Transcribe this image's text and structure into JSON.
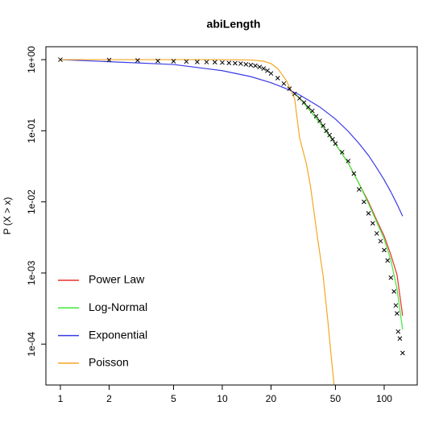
{
  "chart_data": {
    "type": "line",
    "title": "abiLength",
    "y_label": "P (X > x)",
    "log_x": true,
    "log_y": true,
    "legend": "bottomleft",
    "xlim": [
      0.814,
      160
    ],
    "ylim": [
      2.66e-05,
      1.52
    ],
    "xticks": [
      1,
      2,
      5,
      10,
      20,
      50,
      100
    ],
    "yticks": [
      {
        "value": 1,
        "label": "1e+00"
      },
      {
        "value": 0.1,
        "label": "1e-01"
      },
      {
        "value": 0.01,
        "label": "1e-02"
      },
      {
        "value": 0.001,
        "label": "1e-03"
      },
      {
        "value": 0.0001,
        "label": "1e-04"
      }
    ],
    "points": {
      "color": "#000000",
      "x": [
        1,
        2,
        3,
        4,
        5,
        6,
        7,
        8,
        9,
        10,
        11,
        12,
        13,
        14,
        15,
        16,
        17,
        18,
        19,
        20,
        22,
        24,
        26,
        28,
        30,
        32,
        34,
        36,
        38,
        40,
        42,
        44,
        46,
        48,
        50,
        55,
        60,
        65,
        70,
        75,
        80,
        85,
        90,
        95,
        100,
        105,
        110,
        115,
        118,
        120,
        122,
        125,
        130
      ],
      "values": [
        1,
        0.99,
        0.975,
        0.96,
        0.95,
        0.94,
        0.93,
        0.925,
        0.92,
        0.91,
        0.9,
        0.89,
        0.88,
        0.86,
        0.84,
        0.82,
        0.79,
        0.75,
        0.7,
        0.64,
        0.55,
        0.46,
        0.39,
        0.33,
        0.286,
        0.25,
        0.215,
        0.19,
        0.16,
        0.138,
        0.118,
        0.1,
        0.087,
        0.076,
        0.066,
        0.05,
        0.0375,
        0.025,
        0.015,
        0.01,
        0.0069,
        0.005,
        0.0036,
        0.0028,
        0.0021,
        0.0015,
        0.00086,
        0.00055,
        0.00035,
        0.00027,
        0.00015,
        0.00012,
        7.5e-05
      ]
    },
    "series": [
      {
        "name": "Power Law",
        "color": "#e8302a",
        "x": [
          28,
          30,
          40,
          50,
          60,
          70,
          80,
          90,
          100,
          110,
          120,
          130
        ],
        "values": [
          0.33,
          0.29,
          0.13,
          0.065,
          0.035,
          0.018,
          0.01,
          0.0055,
          0.0033,
          0.0018,
          0.00095,
          0.00025
        ]
      },
      {
        "name": "Log-Normal",
        "color": "#3ee83a",
        "x": [
          28,
          30,
          40,
          50,
          60,
          70,
          80,
          90,
          100,
          110,
          120,
          130
        ],
        "values": [
          0.33,
          0.29,
          0.13,
          0.065,
          0.035,
          0.018,
          0.0095,
          0.0052,
          0.003,
          0.0015,
          0.0006,
          0.00016
        ]
      },
      {
        "name": "Exponential",
        "color": "#3a3ae8",
        "x": [
          1,
          5,
          10,
          15,
          20,
          25,
          30,
          40,
          50,
          60,
          70,
          80,
          90,
          100,
          110,
          120,
          130
        ],
        "values": [
          1,
          0.855,
          0.7,
          0.577,
          0.474,
          0.389,
          0.32,
          0.216,
          0.146,
          0.098,
          0.066,
          0.045,
          0.03,
          0.0204,
          0.0138,
          0.0093,
          0.0063
        ]
      },
      {
        "name": "Poisson",
        "color": "#f5a623",
        "x": [
          1,
          5,
          10,
          15,
          18,
          20,
          22,
          25,
          28,
          30,
          33,
          35,
          39,
          42,
          45,
          47,
          49
        ],
        "values": [
          1,
          1,
          1,
          0.99,
          0.95,
          0.88,
          0.75,
          0.5,
          0.28,
          0.08,
          0.035,
          0.017,
          0.0028,
          0.0009,
          0.0002,
          7e-05,
          2.7e-05
        ]
      }
    ]
  }
}
